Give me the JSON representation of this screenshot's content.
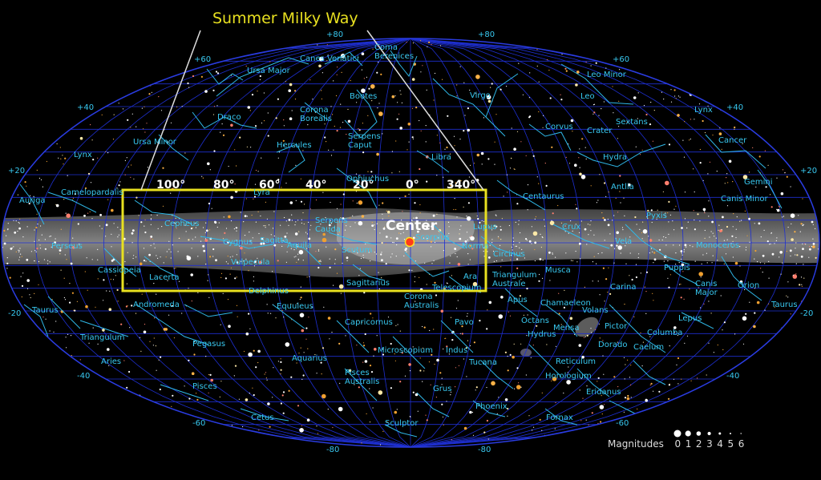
{
  "title": "Summer Milky Way",
  "center_label": "Center",
  "magnitudes": {
    "label": "Magnitudes",
    "values": [
      "0",
      "1",
      "2",
      "3",
      "4",
      "5",
      "6"
    ]
  },
  "galactic_longitude_labels": [
    "100°",
    "80°",
    "60°",
    "40°",
    "20°",
    "0°",
    "340°"
  ],
  "declination_labels": [
    "+80",
    "+60",
    "+40",
    "+20",
    "-20",
    "-40",
    "-60",
    "-80"
  ],
  "constellations": [
    "Coma Berenices",
    "Canes Venatici",
    "Ursa Major",
    "Leo Minor",
    "Bootes",
    "Virgo",
    "Leo",
    "Lynx",
    "Corona Borealis",
    "Draco",
    "Corvus",
    "Crater",
    "Sextans",
    "Cancer",
    "Ursa Minor",
    "Serpens Caput",
    "Hercules",
    "Hydra",
    "Libra",
    "Gemini",
    "Lynx",
    "Ophiuchus",
    "Centaurus",
    "Antlia",
    "Auriga",
    "Camelopardalis",
    "Lyra",
    "Canis Minor",
    "Cepheus",
    "Serpens Cauda",
    "Scorpius",
    "Lupus",
    "Pyxis",
    "Crux",
    "Perseus",
    "Cygnus",
    "Sagitta",
    "Aquila",
    "Scutum",
    "Norma",
    "Circinus",
    "Vela",
    "Monoceros",
    "Cassiopeia",
    "Vulpecula",
    "Puppis",
    "Lacerta",
    "Sagittarius",
    "Ara",
    "Triangulum Australe",
    "Musca",
    "Canis Major",
    "Orion",
    "Delphinus",
    "Telescopium",
    "Carina",
    "Andromeda",
    "Corona Australis",
    "Apus",
    "Chamaeleon",
    "Volans",
    "Taurus",
    "Equuleus",
    "Octans",
    "Lepus",
    "Pavo",
    "Mensa",
    "Pictor",
    "Columba",
    "Capricornus",
    "Triangulum",
    "Pegasus",
    "Hydrus",
    "Dorado",
    "Caelum",
    "Taurus",
    "Aries",
    "Aquarius",
    "Microscopium",
    "Indus",
    "Reticulum",
    "Pisces Australis",
    "Tucana",
    "Horologium",
    "Pisces",
    "Grus",
    "Eridanus",
    "Phoenix",
    "Cetus",
    "Fornax",
    "Sculptor"
  ],
  "colors": {
    "background": "#000000",
    "grid": "#1e2fd0",
    "constellation_lines": "#2fb8e8",
    "labels": "#38c8f0",
    "milky_way_band": "#8a8a8a",
    "highlight_box": "#e8e020",
    "galactic_center": "#ff3b1a"
  }
}
